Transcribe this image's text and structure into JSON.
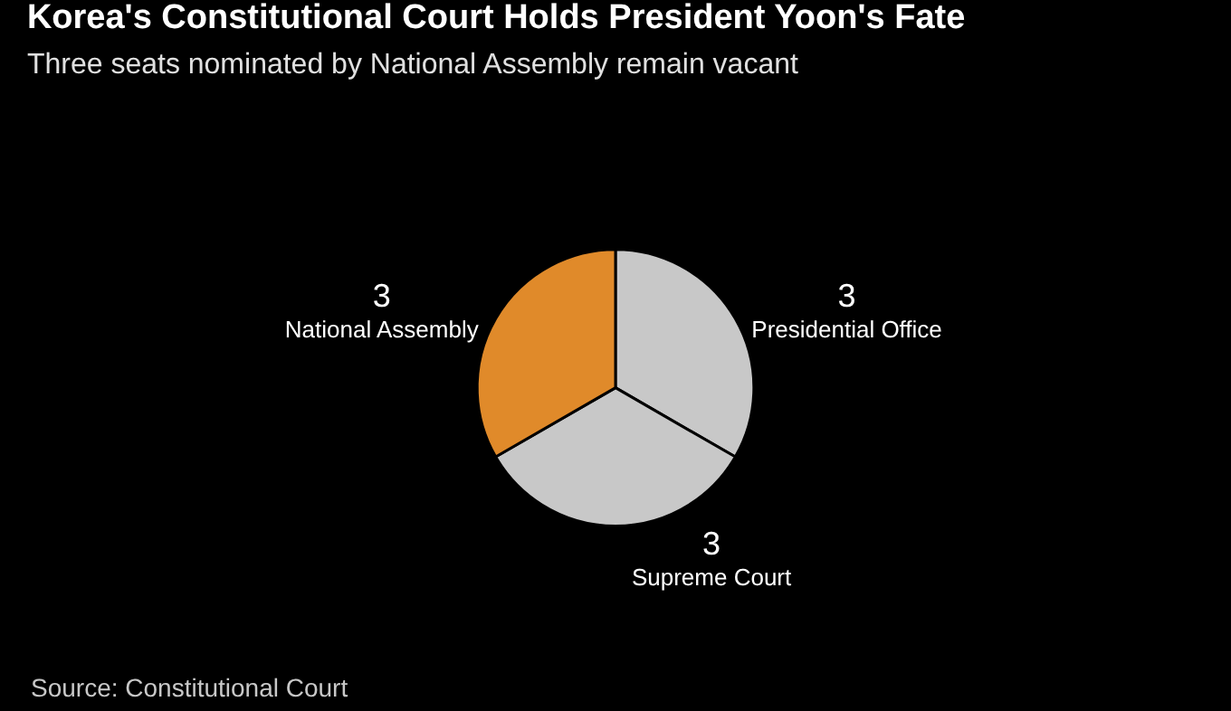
{
  "chart_data": {
    "type": "pie",
    "title": "Korea's Constitutional Court Holds President Yoon's Fate",
    "subtitle": "Three seats nominated by National Assembly remain vacant",
    "categories": [
      "Presidential Office",
      "Supreme Court",
      "National Assembly"
    ],
    "values": [
      3,
      3,
      3
    ],
    "colors": [
      "#c8c8c8",
      "#c8c8c8",
      "#e08a2a"
    ],
    "data_labels": true,
    "legend": false,
    "annotations": [
      "Source: Constitutional Court"
    ]
  }
}
